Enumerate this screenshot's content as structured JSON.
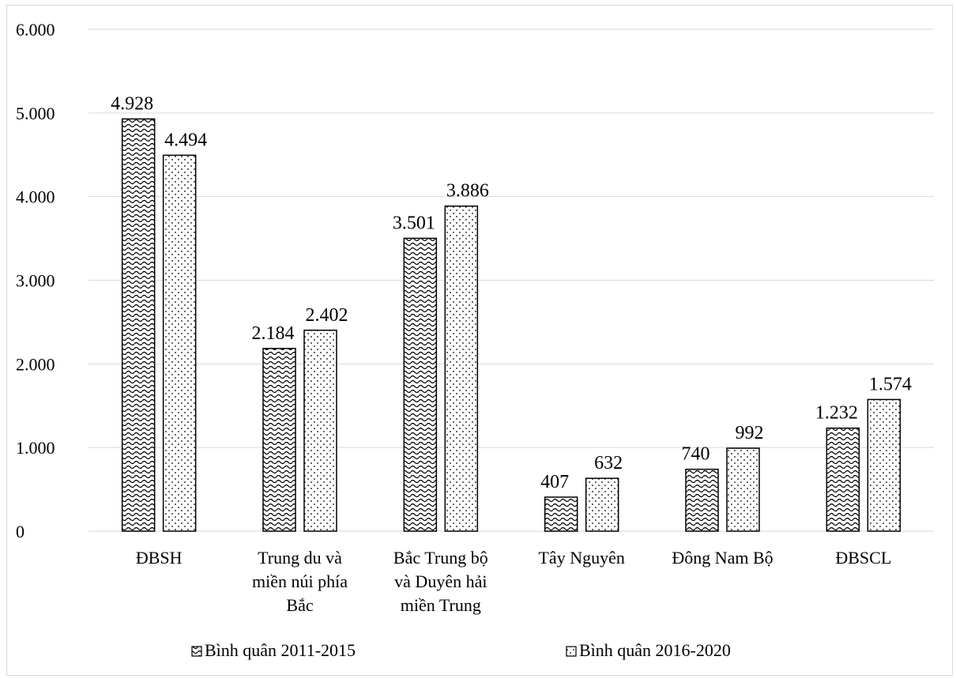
{
  "chart_data": {
    "type": "bar",
    "categories": [
      [
        "ĐBSH"
      ],
      [
        "Trung du và",
        "miền núi phía",
        "Bắc"
      ],
      [
        "Bắc Trung bộ",
        "và Duyên hải",
        "miền Trung"
      ],
      [
        "Tây Nguyên"
      ],
      [
        "Đông Nam Bộ"
      ],
      [
        "ĐBSCL"
      ]
    ],
    "series": [
      {
        "name": "Bình quân 2011-2015",
        "pattern": "wave",
        "values": [
          4928,
          2184,
          3501,
          407,
          740,
          1232
        ],
        "labels": [
          "4.928",
          "2.184",
          "3.501",
          "407",
          "740",
          "1.232"
        ]
      },
      {
        "name": "Bình quân 2016-2020",
        "pattern": "dots",
        "values": [
          4494,
          2402,
          3886,
          632,
          992,
          1574
        ],
        "labels": [
          "4.494",
          "2.402",
          "3.886",
          "632",
          "992",
          "1.574"
        ]
      }
    ],
    "ylim": [
      0,
      6000
    ],
    "yticks": [
      0,
      1000,
      2000,
      3000,
      4000,
      5000,
      6000
    ],
    "ytick_labels": [
      "0",
      "1.000",
      "2.000",
      "3.000",
      "4.000",
      "5.000",
      "6.000"
    ],
    "grid": true,
    "legend": "bottom",
    "colors": {
      "bar_fill": "#ffffff",
      "bar_stroke": "#000000",
      "grid": "#d9d9d9"
    }
  }
}
